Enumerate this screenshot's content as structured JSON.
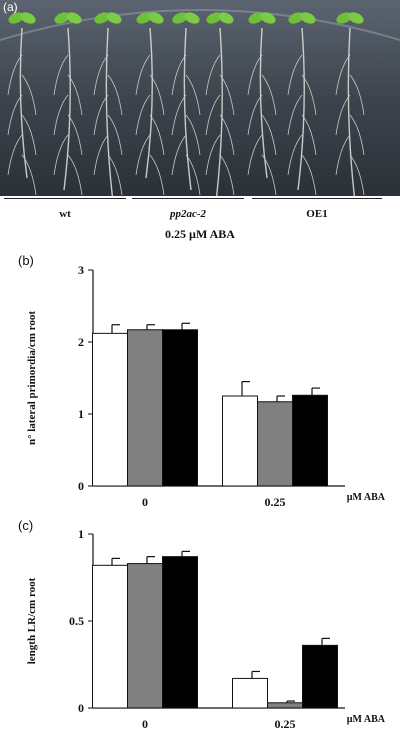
{
  "photo": {
    "panel_label": "(a)",
    "groups": [
      "wt",
      "pp2ac-2",
      "OE1"
    ],
    "treatment_label": "0.25 µM ABA"
  },
  "colors": {
    "wt": "#ffffff",
    "pp2ac-2": "#808080",
    "OE1": "#000000"
  },
  "chart_data": [
    {
      "panel": "(b)",
      "type": "bar",
      "categories": [
        "0",
        "0.25"
      ],
      "unit_label": "µM ABA",
      "ylabel": "n° lateral primordia/cm root",
      "ylim": [
        0,
        3
      ],
      "yticks": [
        "0",
        "1",
        "2",
        "3"
      ],
      "series": [
        {
          "key": "wt",
          "values": [
            2.12,
            1.25
          ],
          "errors": [
            0.12,
            0.2
          ]
        },
        {
          "key": "pp2ac-2",
          "values": [
            2.17,
            1.17
          ],
          "errors": [
            0.07,
            0.08
          ]
        },
        {
          "key": "OE1",
          "values": [
            2.17,
            1.26
          ],
          "errors": [
            0.09,
            0.1
          ]
        }
      ]
    },
    {
      "panel": "(c)",
      "type": "bar",
      "categories": [
        "0",
        "0.25"
      ],
      "unit_label": "µM ABA",
      "ylabel": "length LR/cm root",
      "ylim": [
        0,
        1
      ],
      "yticks": [
        "0",
        "0.5",
        "1"
      ],
      "series": [
        {
          "key": "wt",
          "values": [
            0.82,
            0.17
          ],
          "errors": [
            0.04,
            0.04
          ]
        },
        {
          "key": "pp2ac-2",
          "values": [
            0.83,
            0.03
          ],
          "errors": [
            0.04,
            0.01
          ]
        },
        {
          "key": "OE1",
          "values": [
            0.87,
            0.36
          ],
          "errors": [
            0.03,
            0.04
          ]
        }
      ]
    }
  ]
}
